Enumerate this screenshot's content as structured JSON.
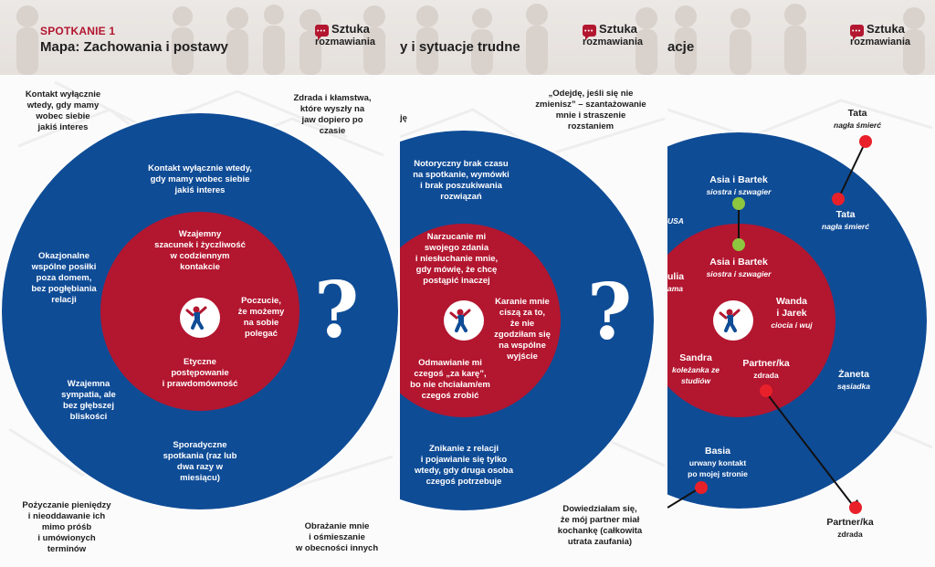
{
  "colors": {
    "outer": "#0f4c96",
    "inner": "#b3162f",
    "dot": "#e8202a",
    "green": "#8dc63f"
  },
  "header": {
    "kicker": "SPOTKANIE 1",
    "title": "Mapa: Zachowania i postawy",
    "title_frag_2": "y i sytuacje trudne",
    "title_frag_3": "acje"
  },
  "logo": {
    "line1": "Sztuka",
    "line2": "rozmawiania",
    "icon": "speech-bubble-icon"
  },
  "icons": {
    "center": "person-icon",
    "question": "question-mark-icon"
  },
  "panel1": {
    "corner_tl": "Kontakt wyłącznie\nwtedy, gdy mamy\nwobec siebie\njakiś interes",
    "corner_tr": "Zdrada i kłamstwa,\nktóre wyszły na\njaw dopiero po\nczasie",
    "corner_bl": "Pożyczanie pieniędzy\ni nieoddawanie ich\nmimo próśb\ni umówionych\nterminów",
    "corner_br": "Obrażanie mnie\ni ośmieszanie\nw obecności innych",
    "outer_top": "Kontakt wyłącznie wtedy,\ngdy mamy wobec siebie\njakiś interes",
    "outer_left1": "Okazjonalne\nwspólne posiłki\npoza domem,\nbez pogłębiania\nrelacji",
    "outer_left2": "Wzajemna\nsympatia, ale\nbez głębszej\nbliskości",
    "outer_bottom": "Sporadyczne\nspotkania (raz lub\ndwa razy w\nmiesiącu)",
    "inner_top": "Wzajemny\nszacunek  i życzliwość\nw codziennym\nkontakcie",
    "inner_right": "Poczucie,\nże możemy\nna sobie\npolegać",
    "inner_bottom": "Etyczne\npostępowanie\ni prawdomówność"
  },
  "panel2": {
    "edge_left": "ję",
    "corner_top": "„Odejdę, jeśli się nie\nzmienisz” – szantażowanie\nmnie i straszenie\nrozstaniem",
    "corner_bottom": "Dowiedziałam się,\nże mój partner miał\nkochankę (całkowita\nutrata zaufania)",
    "outer_top": "Notoryczny brak czasu\nna spotkanie, wymówki\ni brak poszukiwania\nrozwiązań",
    "outer_bottom": "Znikanie z relacji\ni pojawianie się tylko\nwtedy, gdy druga osoba\nczegoś potrzebuje",
    "inner_top": "Narzucanie mi\nswojego zdania\ni niesłuchanie mnie,\ngdy mówię, że chcę\npostąpić inaczej",
    "inner_right": "Karanie mnie\nciszą za to,\nże nie\nzgodziłam się\nna wspólne\nwyjście",
    "inner_bottom": "Odmawianie mi\nczegoś „za karę”,\nbo nie chciałam/em\nczegoś zrobić"
  },
  "panel3": {
    "tata_out": {
      "name": "Tata",
      "role": "nagła śmierć"
    },
    "tata_in": {
      "name": "Tata",
      "role": "nagła śmierć"
    },
    "asia_outer": {
      "name": "Asia i Bartek",
      "role": "siostra i szwagier"
    },
    "asia_inner": {
      "name": "Asia i Bartek",
      "role": "siostra i szwagier"
    },
    "usa": "USA",
    "julia": {
      "name": "ulia",
      "role": "ama"
    },
    "wanda": {
      "name": "Wanda\ni Jarek",
      "role": "ciocia i wuj"
    },
    "sandra": {
      "name": "Sandra",
      "role": "koleżanka ze\nstudiów"
    },
    "partner_in": {
      "name": "Partner/ka",
      "role": "zdrada"
    },
    "zaneta": {
      "name": "Żaneta",
      "role": "sąsiadka"
    },
    "basia": {
      "name": "Basia",
      "role": "urwany kontakt\npo mojej stronie"
    },
    "partner_out": {
      "name": "Partner/ka",
      "role": "zdrada"
    }
  }
}
